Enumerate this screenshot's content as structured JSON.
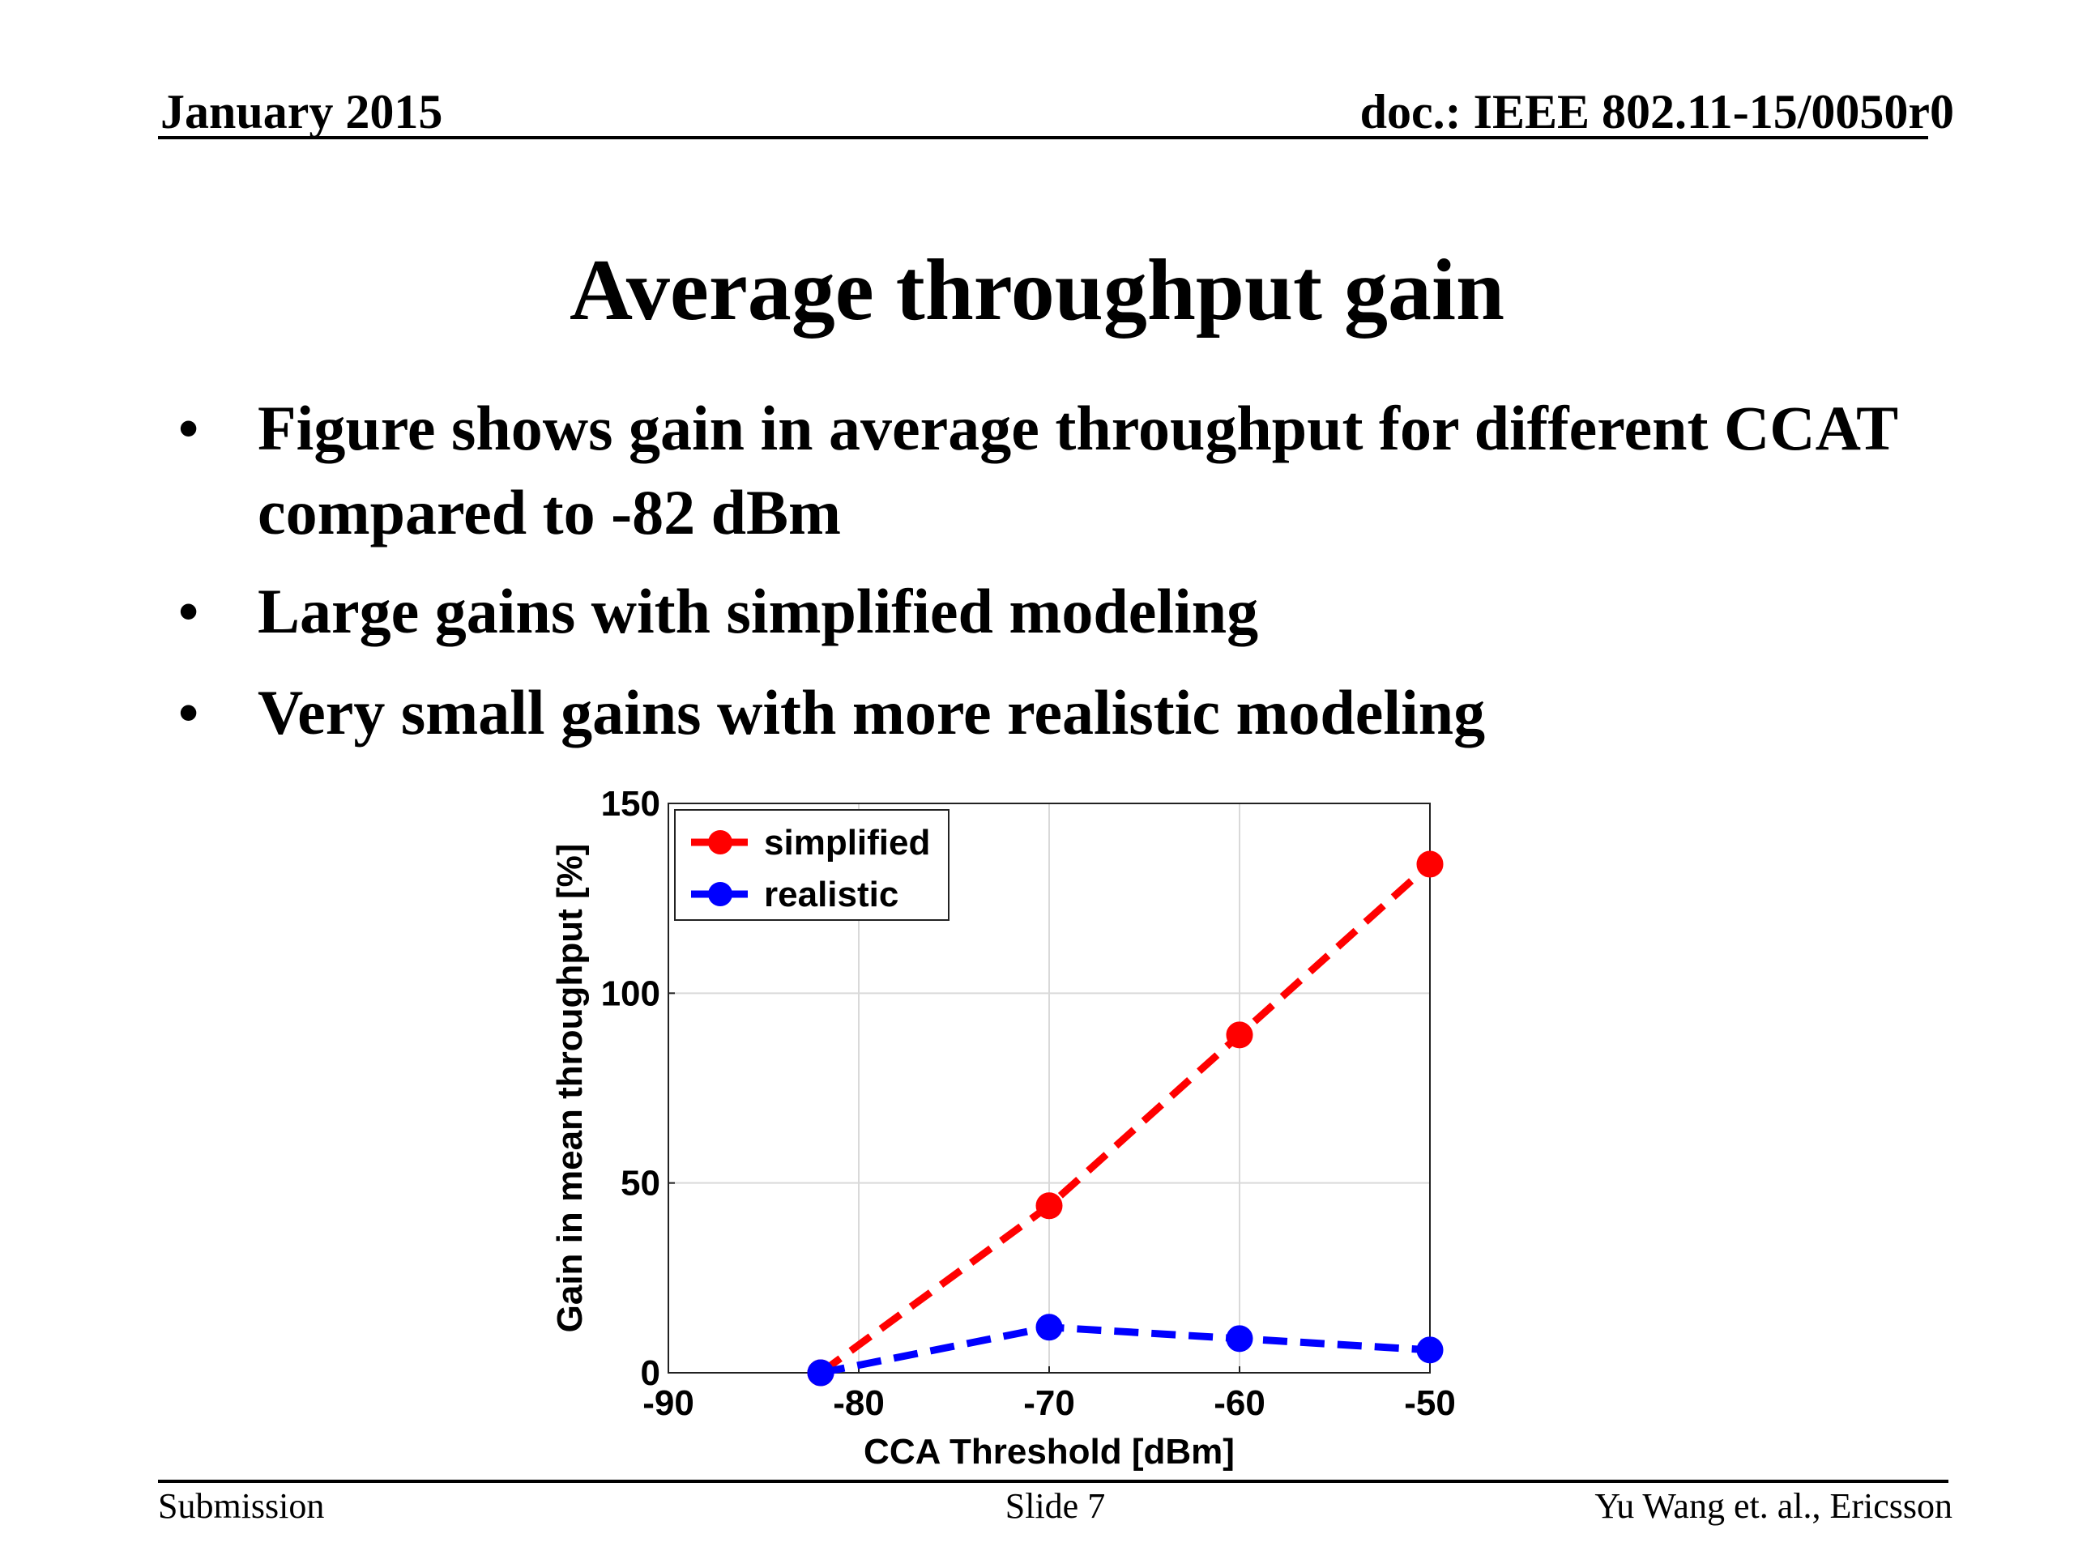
{
  "header": {
    "date": "January 2015",
    "doc": "doc.: IEEE 802.11-15/0050r0"
  },
  "title": "Average throughput gain",
  "bullets": [
    "Figure shows gain in average throughput for different CCAT compared to -82 dBm",
    "Large gains with simplified modeling",
    "Very small gains with more realistic modeling"
  ],
  "bullet_marker": "•",
  "chart_data": {
    "type": "line",
    "xlabel": "CCA Threshold [dBm]",
    "ylabel": "Gain in mean throughput [%]",
    "xlim": [
      -90,
      -50
    ],
    "ylim": [
      0,
      150
    ],
    "xticks": [
      -90,
      -80,
      -70,
      -60,
      -50
    ],
    "yticks": [
      0,
      50,
      100,
      150
    ],
    "grid": true,
    "legend_position": "top-left",
    "series": [
      {
        "name": "simplified",
        "color": "#ff0000",
        "x": [
          -82,
          -70,
          -60,
          -50
        ],
        "y": [
          0,
          44,
          89,
          134
        ]
      },
      {
        "name": "realistic",
        "color": "#0000ff",
        "x": [
          -82,
          -70,
          -60,
          -50
        ],
        "y": [
          0,
          12,
          9,
          6
        ]
      }
    ]
  },
  "footer": {
    "left": "Submission",
    "center": "Slide 7",
    "right": "Yu Wang et. al., Ericsson"
  }
}
